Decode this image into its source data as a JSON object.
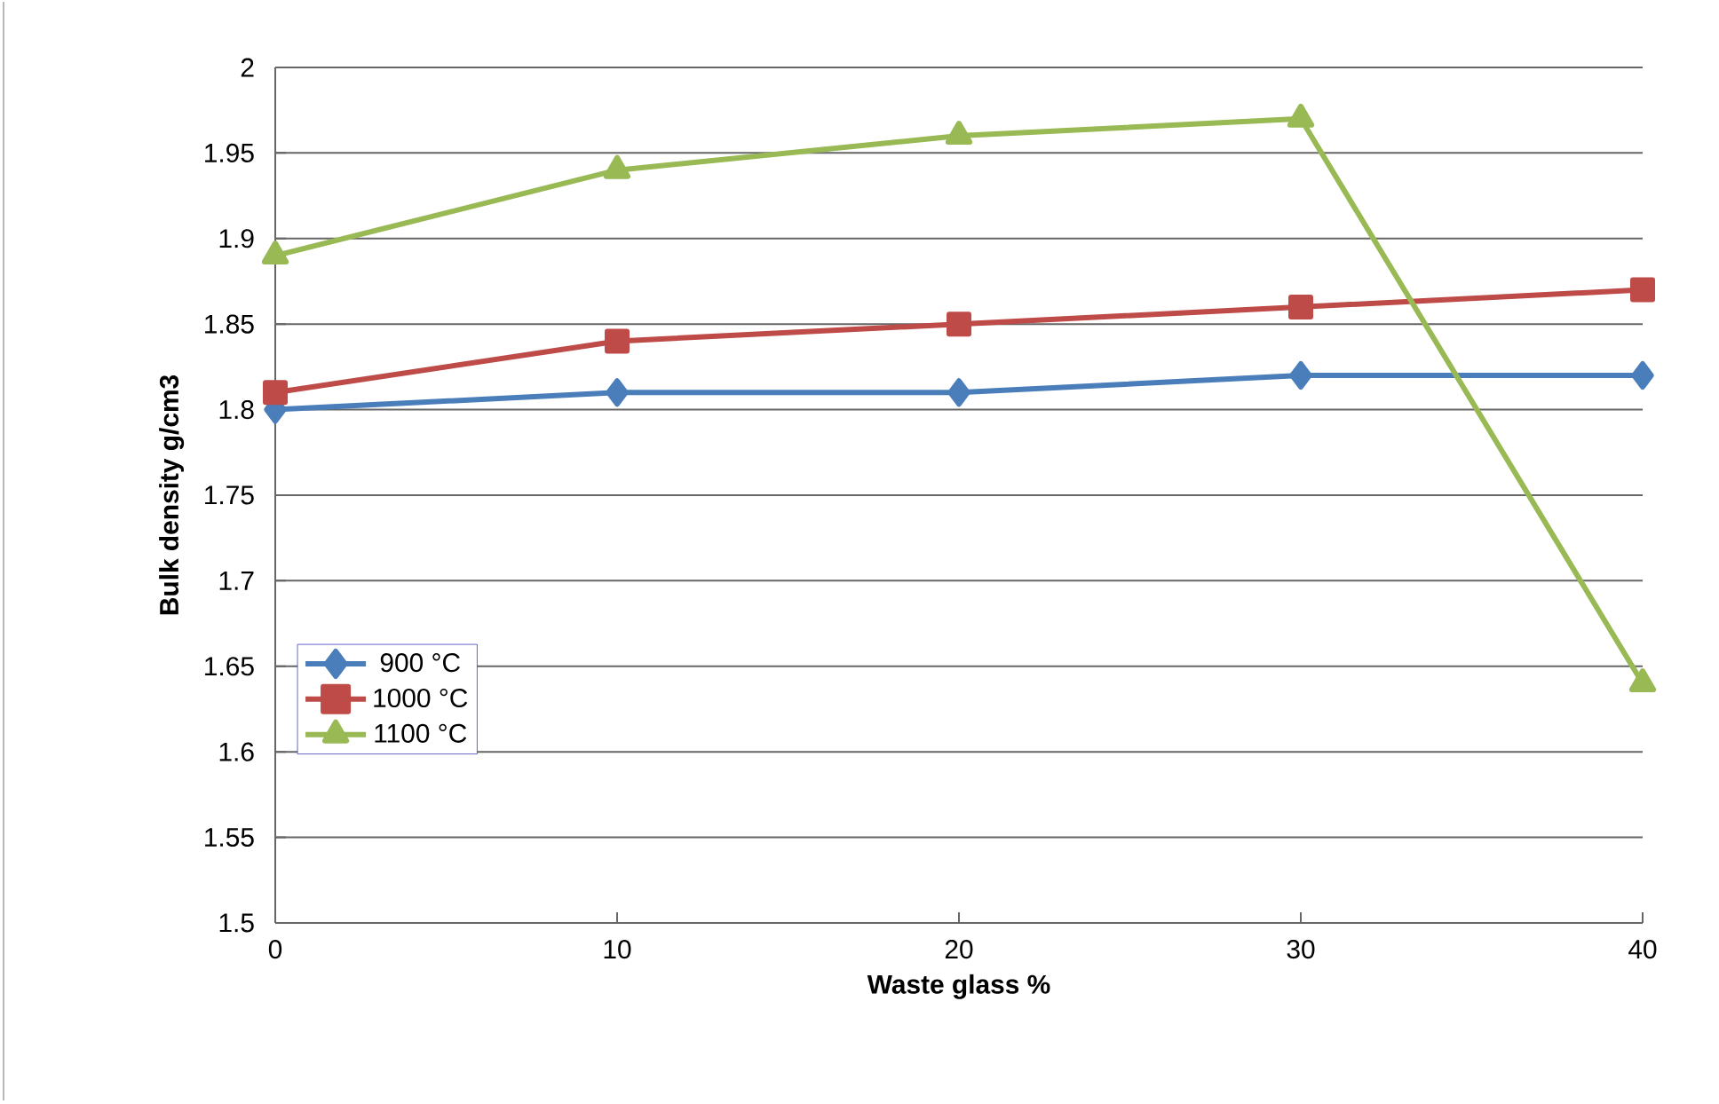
{
  "chart_data": {
    "type": "line",
    "xlabel": "Waste glass %",
    "ylabel": "Bulk density  g/cm3",
    "x": [
      0,
      10,
      20,
      30,
      40
    ],
    "series": [
      {
        "name": "900 °C",
        "color": "#4a7ebb",
        "marker": "diamond",
        "values": [
          1.8,
          1.81,
          1.81,
          1.82,
          1.82
        ]
      },
      {
        "name": "1000 °C",
        "color": "#be4b48",
        "marker": "square",
        "values": [
          1.81,
          1.84,
          1.85,
          1.86,
          1.87
        ]
      },
      {
        "name": "1100 °C",
        "color": "#98b954",
        "marker": "triangle",
        "values": [
          1.89,
          1.94,
          1.96,
          1.97,
          1.64
        ]
      }
    ],
    "xlim": [
      0,
      40
    ],
    "xticks": [
      0,
      10,
      20,
      30,
      40
    ],
    "ylim": [
      1.5,
      2
    ],
    "yticks": [
      1.5,
      1.55,
      1.6,
      1.65,
      1.7,
      1.75,
      1.8,
      1.85,
      1.9,
      1.95,
      2
    ],
    "grid": "y",
    "legend": "bottom left",
    "line_style": "solid"
  }
}
